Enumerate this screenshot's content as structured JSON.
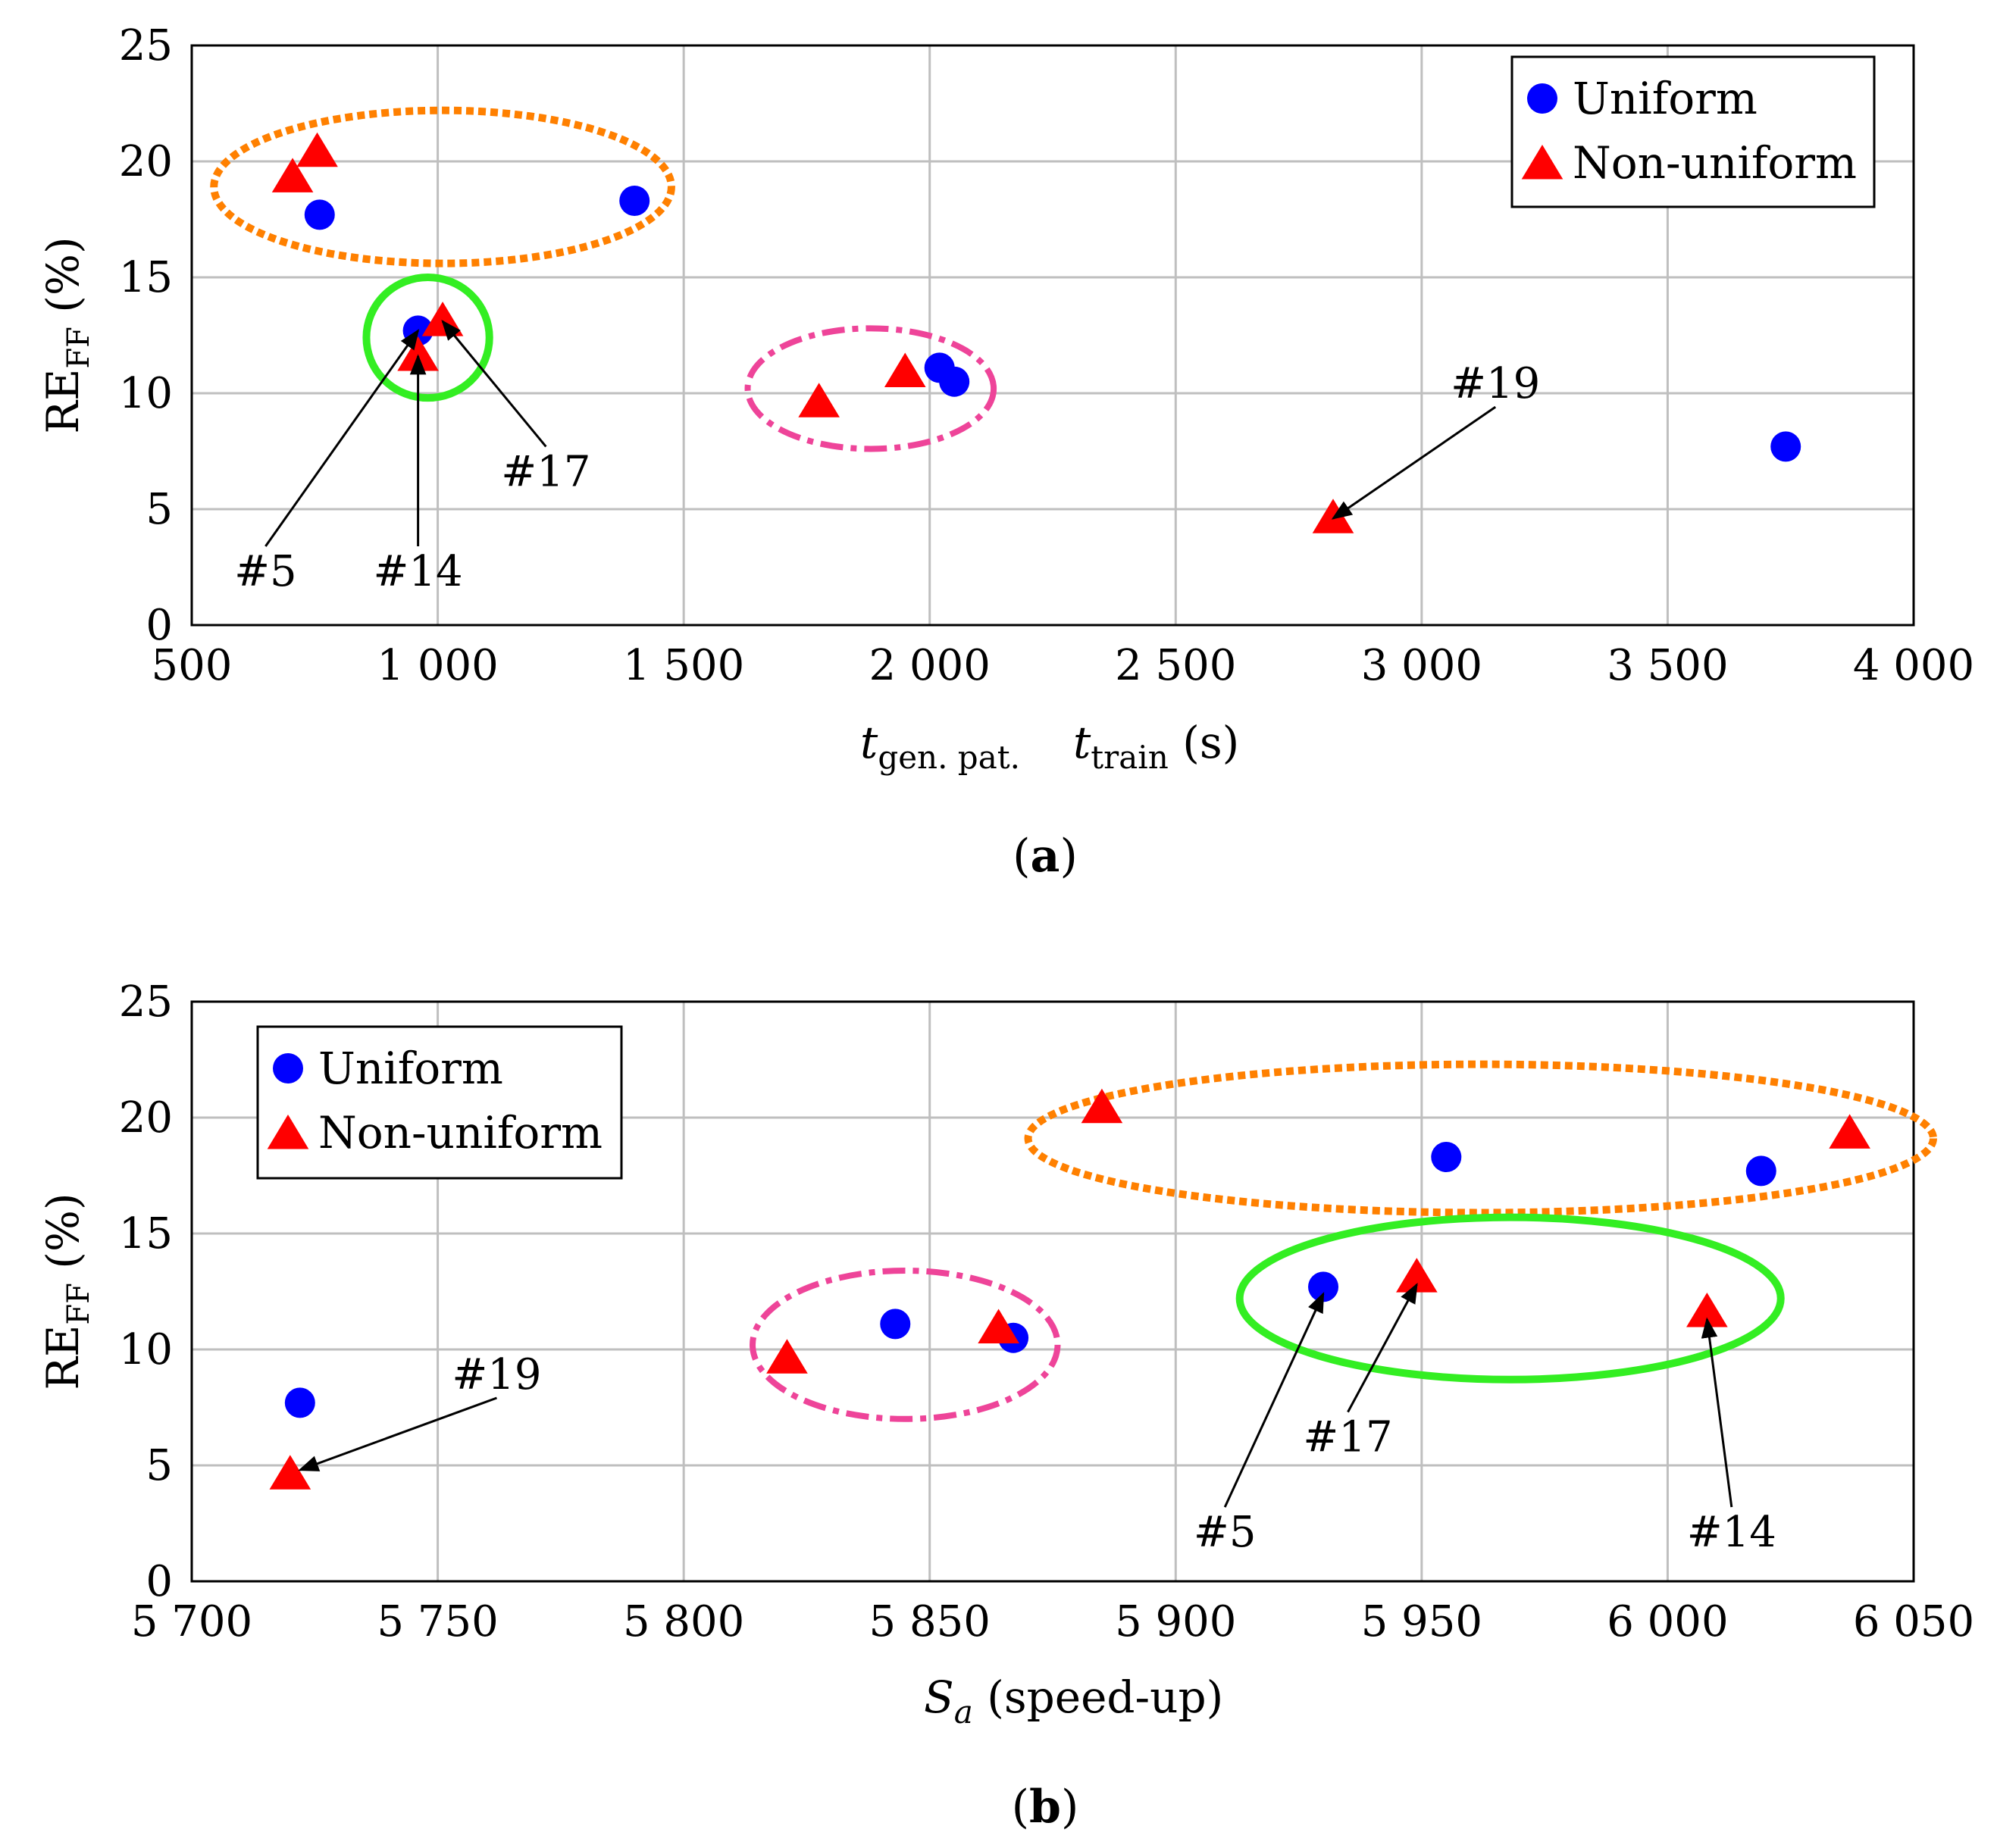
{
  "colors": {
    "uniform": "#0000ff",
    "nonuniform": "#ff0000",
    "orange": "#ff8000",
    "green": "#33ee22",
    "pink": "#ee4499",
    "grid": "#bfbfbf"
  },
  "legend": {
    "uniform": "Uniform",
    "nonuniform": "Non-uniform"
  },
  "chart_data": [
    {
      "type": "scatter",
      "caption_letter": "a",
      "xlabel_t": "t",
      "xlabel_sub1": "gen. pat.",
      "xlabel_sub2": "train",
      "xlabel_unit": "(s)",
      "ylabel_main": "RE",
      "ylabel_sub": "FF",
      "ylabel_unit": "(%)",
      "xlim": [
        500,
        4000
      ],
      "ylim": [
        0,
        25
      ],
      "xticks": [
        500,
        1000,
        1500,
        2000,
        2500,
        3000,
        3500,
        4000
      ],
      "xtick_labels": [
        "500",
        "1 000",
        "1 500",
        "2 000",
        "2 500",
        "3 000",
        "3 500",
        "4 000"
      ],
      "yticks": [
        0,
        5,
        10,
        15,
        20,
        25
      ],
      "ytick_labels": [
        "0",
        "5",
        "10",
        "15",
        "20",
        "25"
      ],
      "legend_position": "top-right",
      "series": [
        {
          "name": "Uniform",
          "marker": "circle",
          "points": [
            [
              760,
              17.7
            ],
            [
              1400,
              18.3
            ],
            [
              960,
              12.7
            ],
            [
              2020,
              11.1
            ],
            [
              2050,
              10.5
            ],
            [
              3740,
              7.7
            ]
          ]
        },
        {
          "name": "Non-uniform",
          "marker": "triangle",
          "points": [
            [
              705,
              19.3
            ],
            [
              755,
              20.4
            ],
            [
              1010,
              13.1
            ],
            [
              960,
              11.6
            ],
            [
              1775,
              9.6
            ],
            [
              1950,
              10.9
            ],
            [
              2820,
              4.6
            ]
          ]
        }
      ],
      "groups": [
        {
          "color": "orange",
          "style": "dotted",
          "cx": 1010,
          "cy": 18.9,
          "rx": 465,
          "ry": 3.3
        },
        {
          "color": "green",
          "style": "solid",
          "cx": 980,
          "cy": 12.4,
          "rx": 125,
          "ry": 2.6
        },
        {
          "color": "pink",
          "style": "dashdot",
          "cx": 1880,
          "cy": 10.2,
          "rx": 250,
          "ry": 2.6
        }
      ],
      "annotations": [
        {
          "label": "#5",
          "text_at": [
            650,
            1.7
          ],
          "target": [
            960,
            12.7
          ]
        },
        {
          "label": "#14",
          "text_at": [
            960,
            1.7
          ],
          "target": [
            960,
            11.6
          ]
        },
        {
          "label": "#17",
          "text_at": [
            1220,
            6.0
          ],
          "target": [
            1010,
            13.1
          ]
        },
        {
          "label": "#19",
          "text_at": [
            3150,
            9.8
          ],
          "target": [
            2820,
            4.6
          ]
        }
      ]
    },
    {
      "type": "scatter",
      "caption_letter": "b",
      "xlabel_var": "S",
      "xlabel_sub": "a",
      "xlabel_rest": "(speed-up)",
      "ylabel_main": "RE",
      "ylabel_sub": "FF",
      "ylabel_unit": "(%)",
      "xlim": [
        5700,
        6050
      ],
      "ylim": [
        0,
        25
      ],
      "xticks": [
        5700,
        5750,
        5800,
        5850,
        5900,
        5950,
        6000,
        6050
      ],
      "xtick_labels": [
        "5 700",
        "5 750",
        "5 800",
        "5 850",
        "5 900",
        "5 950",
        "6 000",
        "6 050"
      ],
      "yticks": [
        0,
        5,
        10,
        15,
        20,
        25
      ],
      "ytick_labels": [
        "0",
        "5",
        "10",
        "15",
        "20",
        "25"
      ],
      "legend_position": "top-left",
      "series": [
        {
          "name": "Uniform",
          "marker": "circle",
          "points": [
            [
              5722,
              7.7
            ],
            [
              5843,
              11.1
            ],
            [
              5867,
              10.5
            ],
            [
              5930,
              12.7
            ],
            [
              5955,
              18.3
            ],
            [
              6019,
              17.7
            ]
          ]
        },
        {
          "name": "Non-uniform",
          "marker": "triangle",
          "points": [
            [
              5720,
              4.6
            ],
            [
              5821,
              9.6
            ],
            [
              5864,
              10.9
            ],
            [
              5885,
              20.4
            ],
            [
              5949,
              13.1
            ],
            [
              6008,
              11.6
            ],
            [
              6037,
              19.3
            ]
          ]
        }
      ],
      "groups": [
        {
          "color": "orange",
          "style": "dotted",
          "cx": 5962,
          "cy": 19.1,
          "rx": 92,
          "ry": 3.2
        },
        {
          "color": "green",
          "style": "solid",
          "cx": 5968,
          "cy": 12.2,
          "rx": 55,
          "ry": 3.5
        },
        {
          "color": "pink",
          "style": "dashdot",
          "cx": 5845,
          "cy": 10.2,
          "rx": 31,
          "ry": 3.2
        }
      ],
      "annotations": [
        {
          "label": "#19",
          "text_at": [
            5762,
            8.3
          ],
          "target": [
            5722,
            4.8
          ]
        },
        {
          "label": "#5",
          "text_at": [
            5910,
            1.5
          ],
          "target": [
            5930,
            12.4
          ]
        },
        {
          "label": "#17",
          "text_at": [
            5935,
            5.6
          ],
          "target": [
            5949,
            12.8
          ]
        },
        {
          "label": "#14",
          "text_at": [
            6013,
            1.5
          ],
          "target": [
            6008,
            11.3
          ]
        }
      ]
    }
  ]
}
